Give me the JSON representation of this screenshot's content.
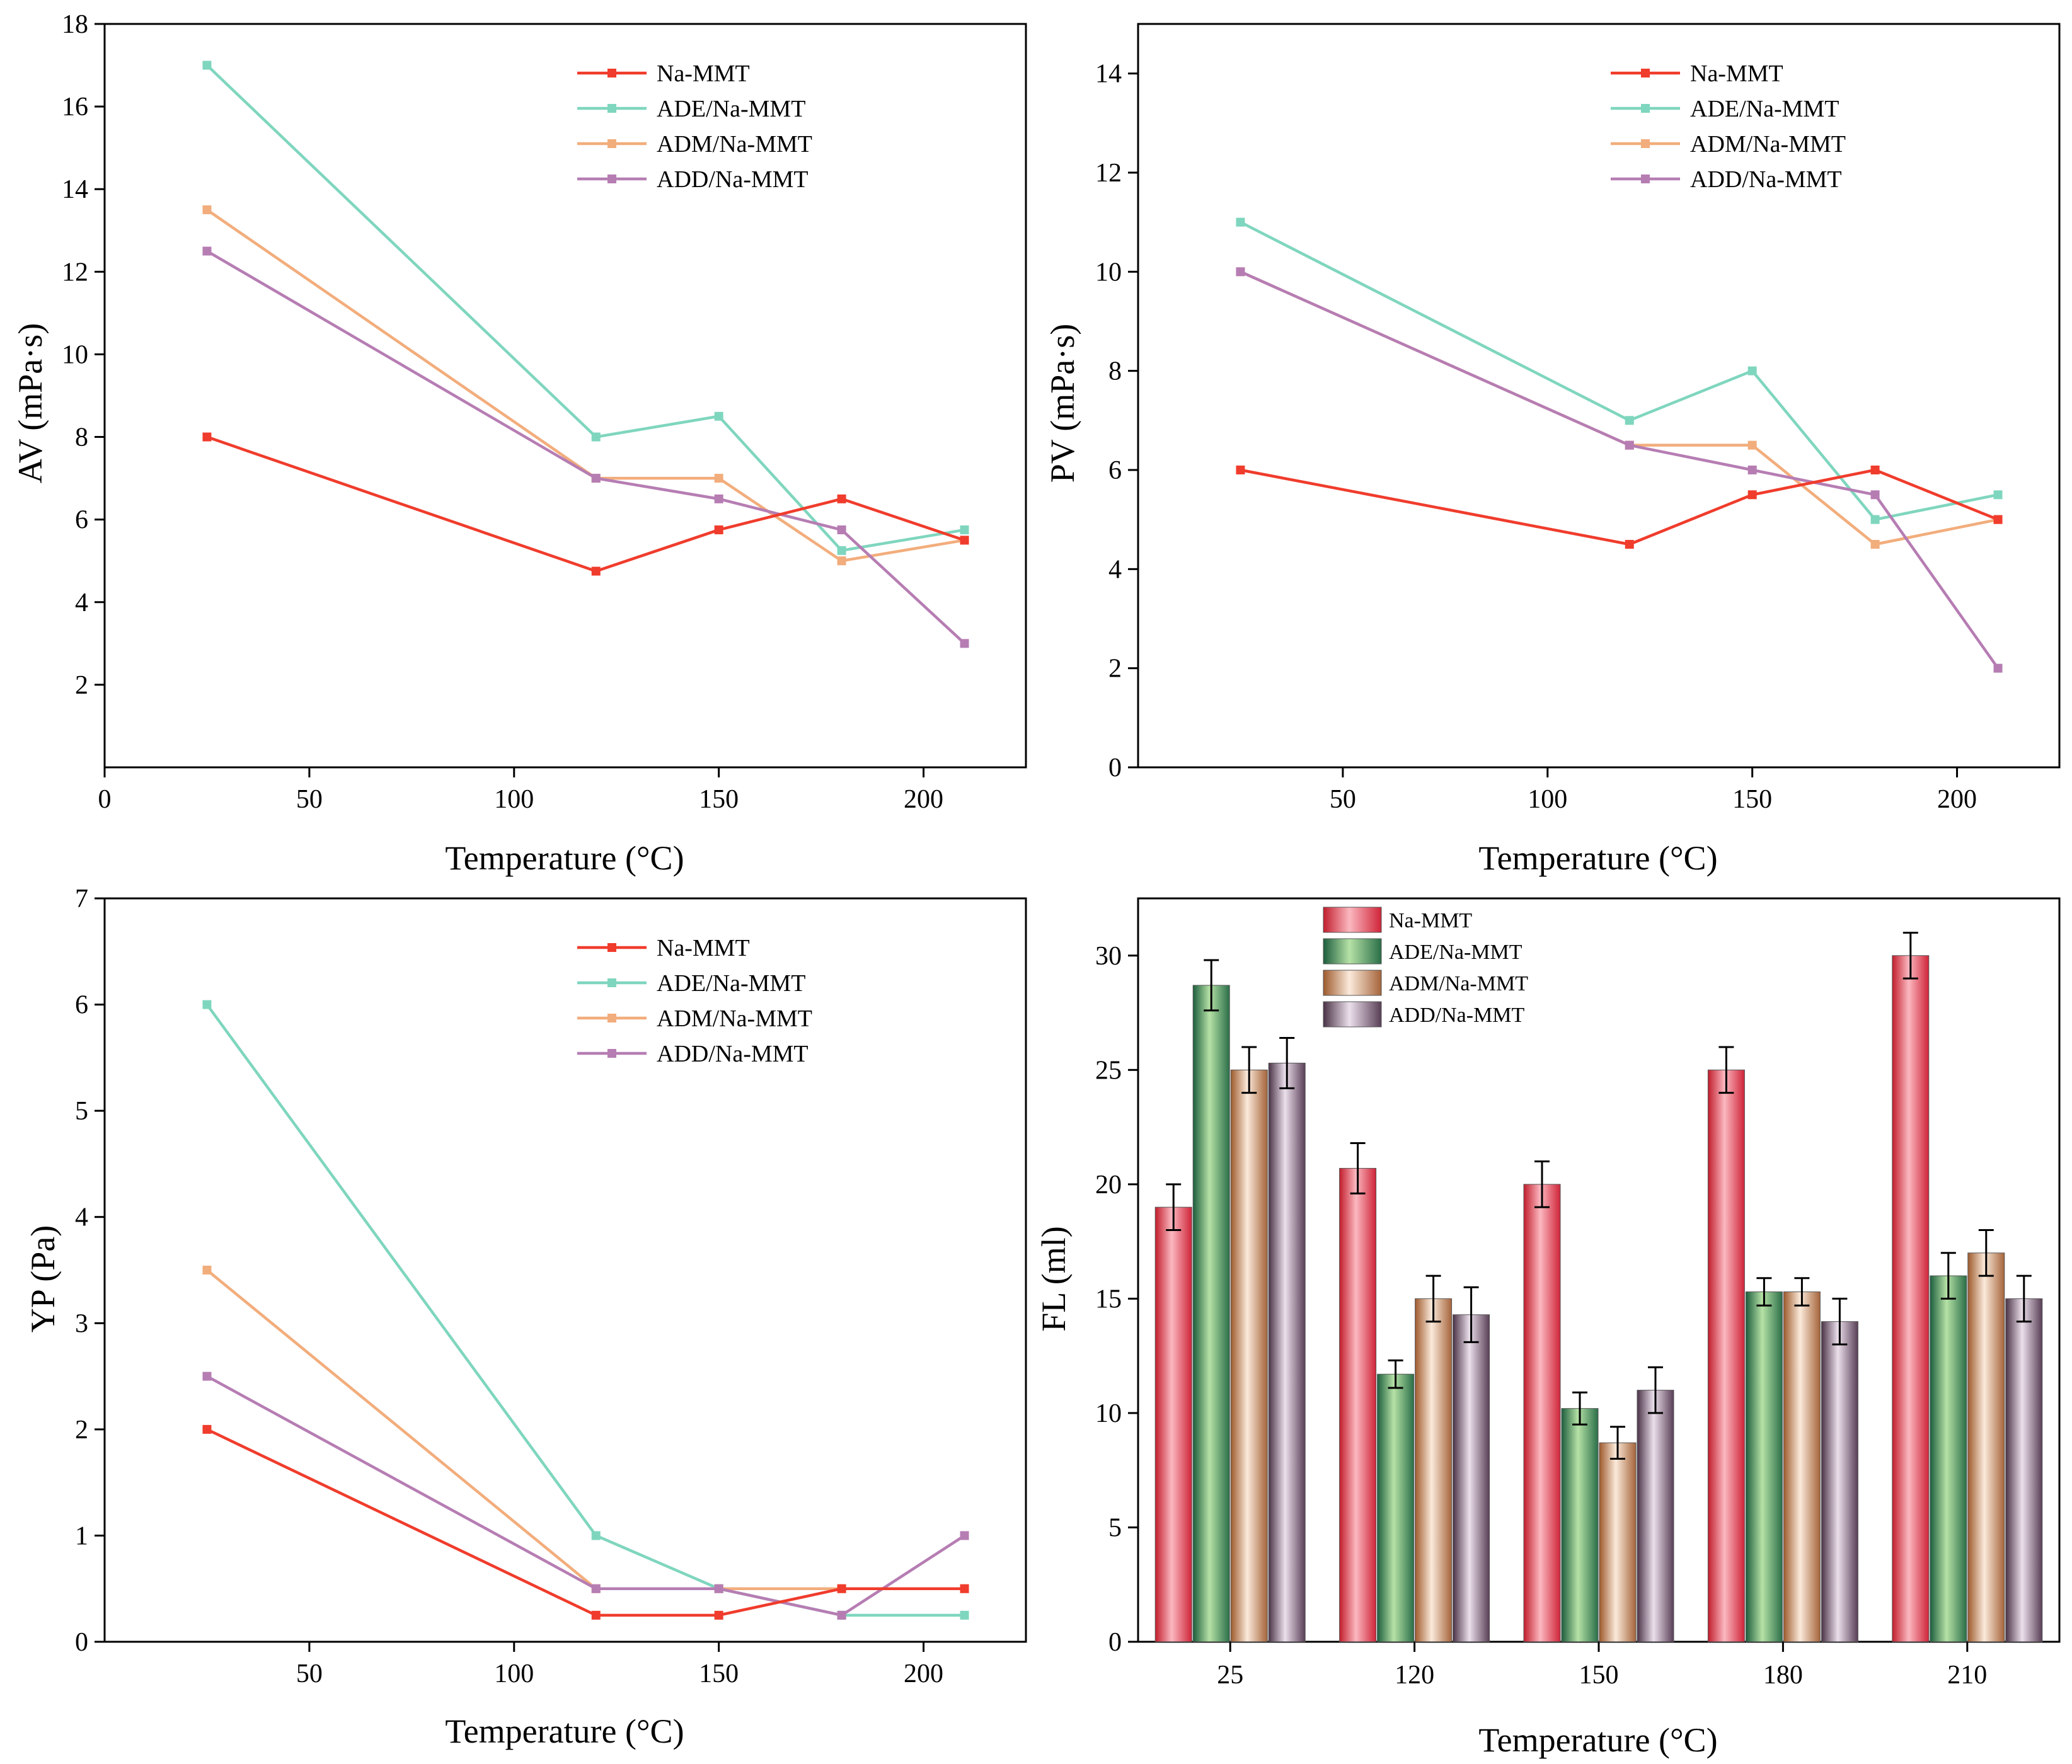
{
  "colors": {
    "Na-MMT": "#f03c2c",
    "ADE/Na-MMT": "#7fd6be",
    "ADM/Na-MMT": "#f2ad7c",
    "ADD/Na-MMT": "#b67db3"
  },
  "chart_data": [
    {
      "id": "av",
      "type": "line",
      "xlabel": "Temperature (°C)",
      "ylabel": "AV (mPa·s)",
      "xlim": [
        0,
        225
      ],
      "ylim": [
        0,
        18
      ],
      "xticks": [
        0,
        50,
        100,
        150,
        200
      ],
      "yticks": [
        2,
        4,
        6,
        8,
        10,
        12,
        14,
        16,
        18
      ],
      "x": [
        25,
        120,
        150,
        180,
        210
      ],
      "legend_position": "top-right",
      "series": [
        {
          "name": "Na-MMT",
          "values": [
            8,
            4.75,
            5.75,
            6.5,
            5.5
          ]
        },
        {
          "name": "ADE/Na-MMT",
          "values": [
            17,
            8,
            8.5,
            5.25,
            5.75
          ]
        },
        {
          "name": "ADM/Na-MMT",
          "values": [
            13.5,
            7,
            7,
            5,
            5.5
          ]
        },
        {
          "name": "ADD/Na-MMT",
          "values": [
            12.5,
            7,
            6.5,
            5.75,
            3
          ]
        }
      ]
    },
    {
      "id": "pv",
      "type": "line",
      "xlabel": "Temperature (°C)",
      "ylabel": "PV (mPa·s)",
      "xlim": [
        0,
        225
      ],
      "ylim": [
        0,
        15
      ],
      "xticks": [
        50,
        100,
        150,
        200
      ],
      "yticks": [
        0,
        2,
        4,
        6,
        8,
        10,
        12,
        14
      ],
      "x": [
        25,
        120,
        150,
        180,
        210
      ],
      "legend_position": "top-right",
      "series": [
        {
          "name": "Na-MMT",
          "values": [
            6,
            4.5,
            5.5,
            6,
            5
          ]
        },
        {
          "name": "ADE/Na-MMT",
          "values": [
            11,
            7,
            8,
            5,
            5.5
          ]
        },
        {
          "name": "ADM/Na-MMT",
          "values": [
            10,
            6.5,
            6.5,
            4.5,
            5
          ]
        },
        {
          "name": "ADD/Na-MMT",
          "values": [
            10,
            6.5,
            6,
            5.5,
            2
          ]
        }
      ]
    },
    {
      "id": "yp",
      "type": "line",
      "xlabel": "Temperature (°C)",
      "ylabel": "YP (Pa)",
      "xlim": [
        0,
        225
      ],
      "ylim": [
        0,
        7
      ],
      "xticks": [
        50,
        100,
        150,
        200
      ],
      "yticks": [
        0,
        1,
        2,
        3,
        4,
        5,
        6,
        7
      ],
      "x": [
        25,
        120,
        150,
        180,
        210
      ],
      "legend_position": "top-right",
      "series": [
        {
          "name": "Na-MMT",
          "values": [
            2,
            0.25,
            0.25,
            0.5,
            0.5
          ]
        },
        {
          "name": "ADE/Na-MMT",
          "values": [
            6,
            1,
            0.5,
            0.25,
            0.25
          ]
        },
        {
          "name": "ADM/Na-MMT",
          "values": [
            3.5,
            0.5,
            0.5,
            0.5,
            0.5
          ]
        },
        {
          "name": "ADD/Na-MMT",
          "values": [
            2.5,
            0.5,
            0.5,
            0.25,
            1
          ]
        }
      ]
    },
    {
      "id": "fl",
      "type": "bar",
      "xlabel": "Temperature (°C)",
      "ylabel": "FL (ml)",
      "ylim": [
        0,
        32.5
      ],
      "yticks": [
        0,
        5,
        10,
        15,
        20,
        25,
        30
      ],
      "categories": [
        "25",
        "120",
        "150",
        "180",
        "210"
      ],
      "legend_position": "top-left",
      "series": [
        {
          "name": "Na-MMT",
          "values": [
            19,
            20.7,
            20,
            25,
            30
          ],
          "errors": [
            1,
            1.1,
            1,
            1,
            1
          ]
        },
        {
          "name": "ADE/Na-MMT",
          "values": [
            28.7,
            11.7,
            10.2,
            15.3,
            16
          ],
          "errors": [
            1.1,
            0.6,
            0.7,
            0.6,
            1
          ]
        },
        {
          "name": "ADM/Na-MMT",
          "values": [
            25,
            15,
            8.7,
            15.3,
            17
          ],
          "errors": [
            1,
            1,
            0.7,
            0.6,
            1
          ]
        },
        {
          "name": "ADD/Na-MMT",
          "values": [
            25.3,
            14.3,
            11,
            14,
            15
          ],
          "errors": [
            1.1,
            1.2,
            1,
            1,
            1
          ]
        }
      ]
    }
  ]
}
